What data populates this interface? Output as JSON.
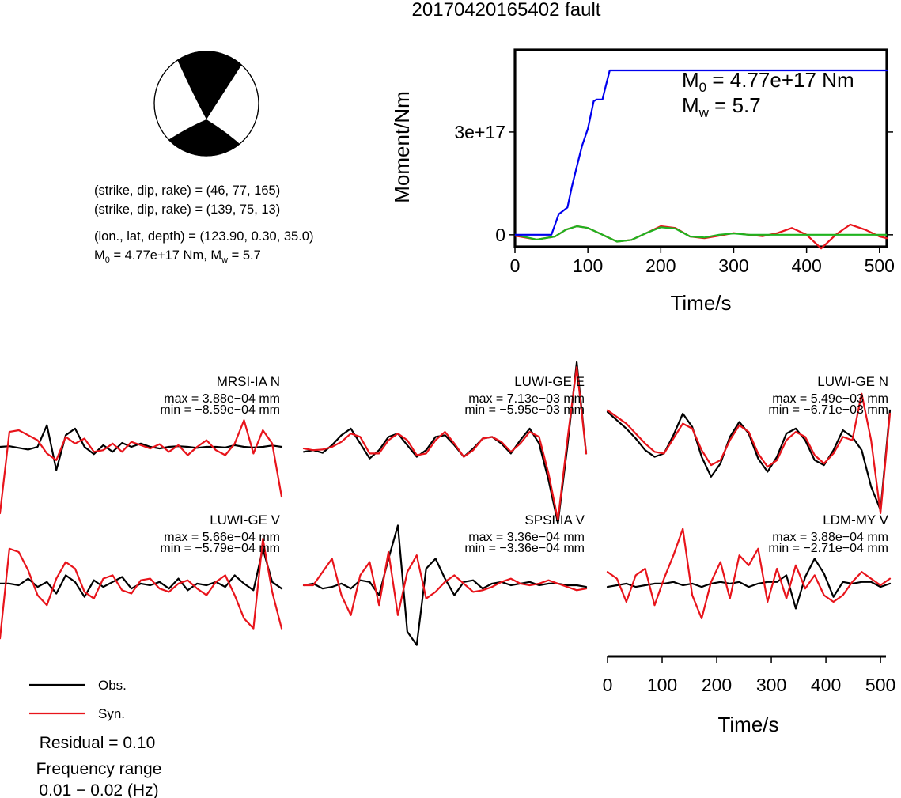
{
  "title": "20170420165402 fault",
  "mechanism": {
    "line1": "(strike, dip, rake) = (46, 77, 165)",
    "line2": "(strike, dip, rake) = (139, 75, 13)",
    "location": "(lon., lat, depth) = (123.90, 0.30, 35.0)",
    "moment_sym": "M",
    "moment_sub": "0",
    "moment_text": " = 4.77e+17 Nm, M",
    "mw_sub": "w",
    "mw_text": " = 5.7"
  },
  "colors": {
    "obs": "#000000",
    "syn": "#e8141b",
    "stf": "#0000ee",
    "syn_cumulative": "#1fb31f",
    "beachball_fill": "#000000"
  },
  "legend": {
    "obs": "Obs.",
    "syn": "Syn.",
    "residual": "Residual = 0.10",
    "freq_title": "Frequency range",
    "freq_range": "0.01 − 0.02 (Hz)"
  },
  "chart_data": [
    {
      "type": "line",
      "id": "moment-rate",
      "ylabel": "Moment/Nm",
      "xlabel": "Time/s",
      "xlim": [
        0,
        510
      ],
      "ylim": [
        -35000000000000000,
        540000000000000000
      ],
      "xticks": [
        0,
        100,
        200,
        300,
        400,
        500
      ],
      "yticks": [
        0,
        300000000000000000
      ],
      "ytick_labels": [
        "0",
        "3e+17"
      ],
      "annotation": {
        "m0_sym": "M",
        "m0_sub": "0",
        "m0_val": " = 4.77e+17 Nm",
        "mw_sym": "M",
        "mw_sub": "w",
        "mw_val": " = 5.7"
      },
      "series": [
        {
          "key": "cumulative",
          "x": [
            0,
            50,
            60,
            72,
            78,
            85,
            92,
            100,
            108,
            112,
            120,
            124,
            130,
            510
          ],
          "y": [
            0,
            0,
            60000000000000000,
            80000000000000000,
            140000000000000000,
            200000000000000000,
            260000000000000000,
            310000000000000000,
            390000000000000000,
            395000000000000000,
            395000000000000000,
            430000000000000000,
            480000000000000000,
            480000000000000000
          ]
        },
        {
          "key": "rate-syn",
          "x": [
            0,
            30,
            55,
            70,
            85,
            100,
            120,
            140,
            160,
            180,
            200,
            220,
            240,
            260,
            280,
            300,
            320,
            340,
            360,
            380,
            400,
            420,
            440,
            460,
            480,
            500,
            510
          ],
          "y": [
            -3000000000000000.0,
            -1.4e+16,
            -5000000000000000.0,
            1.5e+16,
            2.5e+16,
            2e+16,
            0,
            -2e+16,
            -1.5e+16,
            5000000000000000.0,
            2.5e+16,
            2e+16,
            -5000000000000000.0,
            -1e+16,
            -3000000000000000.0,
            5000000000000000.0,
            0,
            -4000000000000000.0,
            5000000000000000.0,
            2e+16,
            0,
            -4e+16,
            0,
            3e+16,
            1.5e+16,
            -5000000000000000.0,
            -1e+16
          ]
        },
        {
          "key": "rate-obs",
          "x": [
            0,
            30,
            55,
            70,
            85,
            100,
            120,
            140,
            160,
            180,
            200,
            220,
            240,
            260,
            280,
            300,
            320,
            340,
            360,
            400,
            450,
            510
          ],
          "y": [
            0,
            -1.4e+16,
            -5000000000000000.0,
            1.5e+16,
            2.5e+16,
            2e+16,
            0,
            -2e+16,
            -1.5e+16,
            5000000000000000.0,
            2.2e+16,
            1.8e+16,
            -5000000000000000.0,
            -8000000000000000.0,
            0,
            4000000000000000.0,
            0,
            0,
            0,
            0,
            0,
            0
          ]
        }
      ]
    },
    {
      "type": "line",
      "id": "waveforms",
      "xlabel": "Time/s",
      "xlim": [
        0,
        510
      ],
      "xticks": [
        0,
        100,
        200,
        300,
        400,
        500
      ],
      "traces": [
        {
          "station": "MRSI-IA N",
          "max": "max = 3.88e−04 mm",
          "min": "min = −8.59e−04 mm",
          "obs": [
            0,
            0.02,
            -0.03,
            -0.08,
            0,
            0.65,
            -0.7,
            0.35,
            0.55,
            0,
            -0.22,
            0.05,
            -0.15,
            0.12,
            0,
            0.1,
            0,
            -0.05,
            0,
            0.02,
            0,
            -0.03,
            0,
            0,
            -0.02,
            0.05,
            0,
            -0.02,
            0,
            0.04,
            0
          ],
          "syn": [
            -2.0,
            0.45,
            0.5,
            0.35,
            0.2,
            -0.2,
            -0.4,
            0.3,
            0.1,
            0.25,
            -0.15,
            -0.1,
            0.1,
            -0.15,
            0.15,
            0.05,
            -0.05,
            0.08,
            -0.15,
            0.05,
            -0.25,
            0,
            0.2,
            -0.1,
            -0.25,
            0.1,
            0.8,
            -0.2,
            0.5,
            0.1,
            -1.5
          ]
        },
        {
          "station": "LUWI-GE E",
          "max": "max = 7.13e−03 mm",
          "min": "min = −5.95e−03 mm",
          "obs": [
            -0.15,
            -0.1,
            -0.18,
            0.05,
            0.35,
            0.55,
            0.1,
            -0.35,
            -0.1,
            0.3,
            0.4,
            0.05,
            -0.3,
            -0.1,
            0.3,
            0.35,
            0.05,
            -0.3,
            -0.05,
            0.25,
            0.3,
            0.1,
            -0.2,
            0.2,
            0.55,
            0.1,
            -1.0,
            -2.3,
            0,
            2.55,
            -0.2
          ],
          "syn": [
            -0.05,
            -0.1,
            -0.08,
            0,
            0.15,
            0.4,
            0.3,
            -0.2,
            -0.2,
            0.2,
            0.4,
            0.2,
            -0.25,
            -0.2,
            0.2,
            0.45,
            0.1,
            -0.3,
            -0.1,
            0.25,
            0.3,
            0.15,
            -0.15,
            0.1,
            0.45,
            0.3,
            -0.8,
            -2.2,
            0.2,
            2.4,
            -0.2
          ]
        },
        {
          "station": "LUWI-GE N",
          "max": "max = 5.49e−03 mm",
          "min": "min = −6.71e−03 mm",
          "obs": [
            1.05,
            0.8,
            0.55,
            0.25,
            -0.1,
            -0.3,
            -0.2,
            0.35,
            1.0,
            0.6,
            -0.3,
            -0.9,
            -0.5,
            0.3,
            0.75,
            0.4,
            -0.35,
            -0.75,
            -0.3,
            0.4,
            0.55,
            0.2,
            -0.4,
            -0.55,
            -0.1,
            0.5,
            0.3,
            -0.1,
            -1.2,
            -1.9,
            1.1
          ],
          "syn": [
            1.1,
            0.9,
            0.7,
            0.4,
            0.1,
            -0.15,
            -0.2,
            0.25,
            0.7,
            0.55,
            -0.1,
            -0.55,
            -0.4,
            0.2,
            0.65,
            0.45,
            -0.2,
            -0.6,
            -0.4,
            0.2,
            0.45,
            0.3,
            -0.25,
            -0.5,
            -0.2,
            0.3,
            0.2,
            1.6,
            0.2,
            -2.0,
            1.0
          ]
        },
        {
          "station": "LUWI-GE V",
          "max": "max = 5.66e−04 mm",
          "min": "min = −5.79e−04 mm",
          "obs": [
            0.05,
            0.05,
            0,
            0.2,
            -0.05,
            0.1,
            -0.25,
            0.3,
            0.1,
            -0.35,
            0.15,
            -0.05,
            0.1,
            0.25,
            -0.1,
            0.05,
            0,
            0.1,
            -0.1,
            0.2,
            -0.15,
            0.05,
            0,
            0.1,
            -0.05,
            0.3,
            0.05,
            -0.15,
            1.1,
            0.1,
            -0.1
          ],
          "syn": [
            -1.6,
            1.1,
            1.0,
            0.45,
            -0.3,
            -0.6,
            0.2,
            0.7,
            0.5,
            -0.2,
            -0.4,
            0.2,
            0.3,
            -0.15,
            -0.25,
            0.15,
            0.2,
            -0.1,
            -0.2,
            0.05,
            0.15,
            -0.1,
            -0.3,
            0.1,
            0.3,
            -0.3,
            -1.0,
            -1.3,
            1.4,
            -0.2,
            -1.3
          ]
        },
        {
          "station": "SPSI-IA V",
          "max": "max = 3.36e−04 mm",
          "min": "min = −3.36e−04 mm",
          "obs": [
            0,
            0.05,
            -0.1,
            -0.05,
            0.05,
            -0.1,
            0.15,
            0.1,
            -0.3,
            0.8,
            1.8,
            -1.4,
            -1.8,
            0.5,
            0.8,
            0.2,
            -0.3,
            0.1,
            0.15,
            -0.1,
            0.05,
            0.1,
            0,
            0.05,
            0.1,
            0,
            0.05,
            0.05,
            0,
            0,
            -0.05
          ],
          "syn": [
            0,
            0,
            0.4,
            0.8,
            -0.3,
            -0.9,
            0.3,
            0.7,
            -0.6,
            1.0,
            -0.9,
            0.4,
            0.9,
            -0.4,
            -0.2,
            0.1,
            0.3,
            0.05,
            -0.2,
            -0.15,
            -0.05,
            0.1,
            0.2,
            0.05,
            0,
            0.05,
            0.15,
            0.05,
            -0.05,
            -0.15,
            -0.1
          ],
          "max_only": true
        },
        {
          "station": "LDM-MY V",
          "max": "max = 3.88e−04 mm",
          "min": "min = −2.71e−04 mm",
          "obs": [
            -0.05,
            0,
            0.05,
            -0.05,
            0,
            0.05,
            0.05,
            0.1,
            0,
            0.05,
            -0.05,
            0.05,
            0.1,
            0.05,
            0.1,
            -0.05,
            0.05,
            0.1,
            0.1,
            0.3,
            -0.7,
            0.25,
            0.8,
            0.35,
            -0.35,
            0.1,
            0.05,
            0.1,
            0.1,
            -0.05,
            0.05
          ],
          "syn": [
            0.4,
            0.2,
            -0.5,
            0.3,
            0.5,
            -0.6,
            0.2,
            0.9,
            1.7,
            -0.3,
            -1.0,
            0.1,
            0.7,
            -0.4,
            0.9,
            0.6,
            1.1,
            -0.5,
            0.5,
            -0.4,
            0.6,
            -0.1,
            0.3,
            -0.3,
            -0.5,
            -0.3,
            0.1,
            0.4,
            0.2,
            0,
            0.2
          ]
        }
      ]
    }
  ]
}
